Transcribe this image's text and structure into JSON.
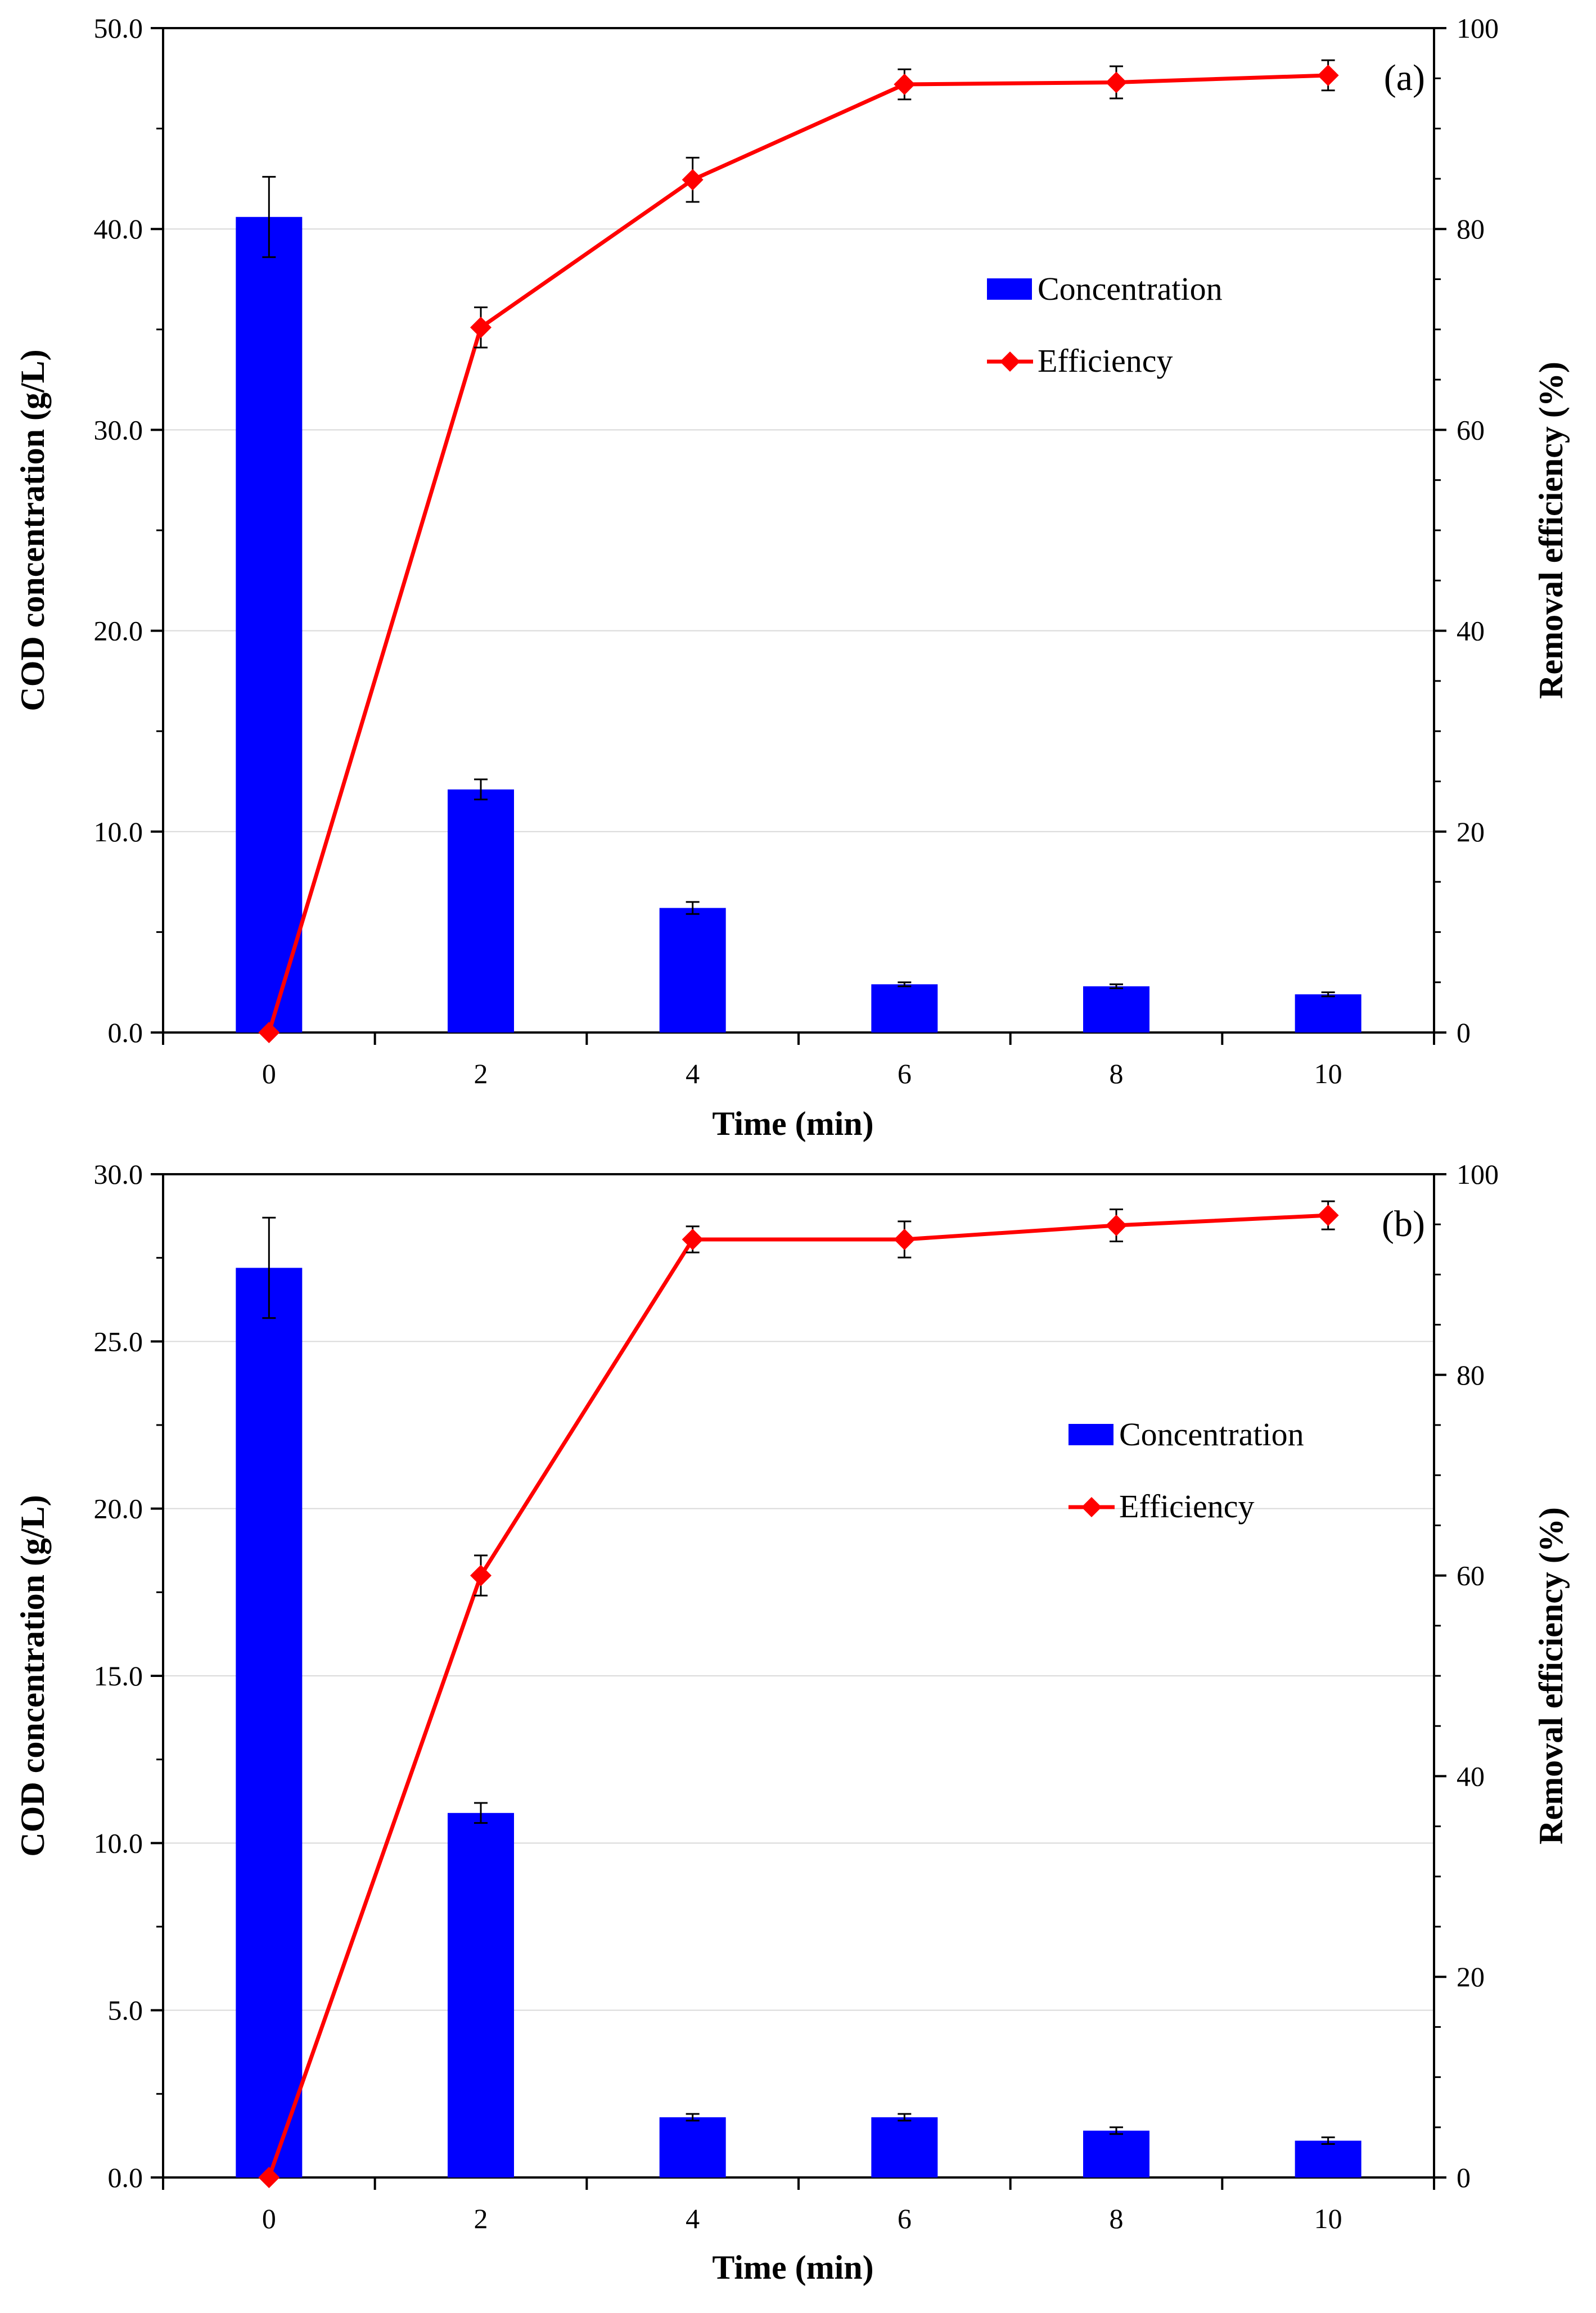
{
  "chart_data": [
    {
      "type": "bar",
      "panel_label": "(a)",
      "categories": [
        "0",
        "2",
        "4",
        "6",
        "8",
        "10"
      ],
      "xlabel": "Time (min)",
      "ylabel": "COD concentration (g/L)",
      "ylim": [
        0,
        50
      ],
      "yticks": [
        "0.0",
        "10.0",
        "20.0",
        "30.0",
        "40.0",
        "50.0"
      ],
      "y2label": "Removal efficiency (%)",
      "y2lim": [
        0,
        100
      ],
      "y2ticks": [
        "0",
        "20",
        "40",
        "60",
        "80",
        "100"
      ],
      "grid": true,
      "legend_position": "upper-right",
      "series": [
        {
          "name": "Concentration",
          "type": "bar",
          "axis": "left",
          "color": "#0000FF",
          "values": [
            40.6,
            12.1,
            6.2,
            2.4,
            2.3,
            1.9
          ],
          "errors": [
            2.0,
            0.5,
            0.3,
            0.1,
            0.1,
            0.1
          ]
        },
        {
          "name": "Efficiency",
          "type": "line",
          "axis": "right",
          "color": "#FF0000",
          "marker": "diamond",
          "values": [
            0,
            70.2,
            84.9,
            94.4,
            94.6,
            95.3
          ],
          "errors": [
            0,
            2.0,
            2.2,
            1.5,
            1.6,
            1.5
          ]
        }
      ]
    },
    {
      "type": "bar",
      "panel_label": "(b)",
      "categories": [
        "0",
        "2",
        "4",
        "6",
        "8",
        "10"
      ],
      "xlabel": "Time (min)",
      "ylabel": "COD concentration (g/L)",
      "ylim": [
        0,
        30
      ],
      "yticks": [
        "0.0",
        "5.0",
        "10.0",
        "15.0",
        "20.0",
        "25.0",
        "30.0"
      ],
      "y2label": "Removal efficiency (%)",
      "y2lim": [
        0,
        100
      ],
      "y2ticks": [
        "0",
        "20",
        "40",
        "60",
        "80",
        "100"
      ],
      "grid": true,
      "legend_position": "upper-right",
      "series": [
        {
          "name": "Concentration",
          "type": "bar",
          "axis": "left",
          "color": "#0000FF",
          "values": [
            27.2,
            10.9,
            1.8,
            1.8,
            1.4,
            1.1
          ],
          "errors": [
            1.5,
            0.3,
            0.1,
            0.1,
            0.1,
            0.1
          ]
        },
        {
          "name": "Efficiency",
          "type": "line",
          "axis": "right",
          "color": "#FF0000",
          "marker": "diamond",
          "values": [
            0,
            60.0,
            93.5,
            93.5,
            94.9,
            95.9
          ],
          "errors": [
            0,
            2.0,
            1.3,
            1.8,
            1.6,
            1.4
          ]
        }
      ]
    }
  ]
}
